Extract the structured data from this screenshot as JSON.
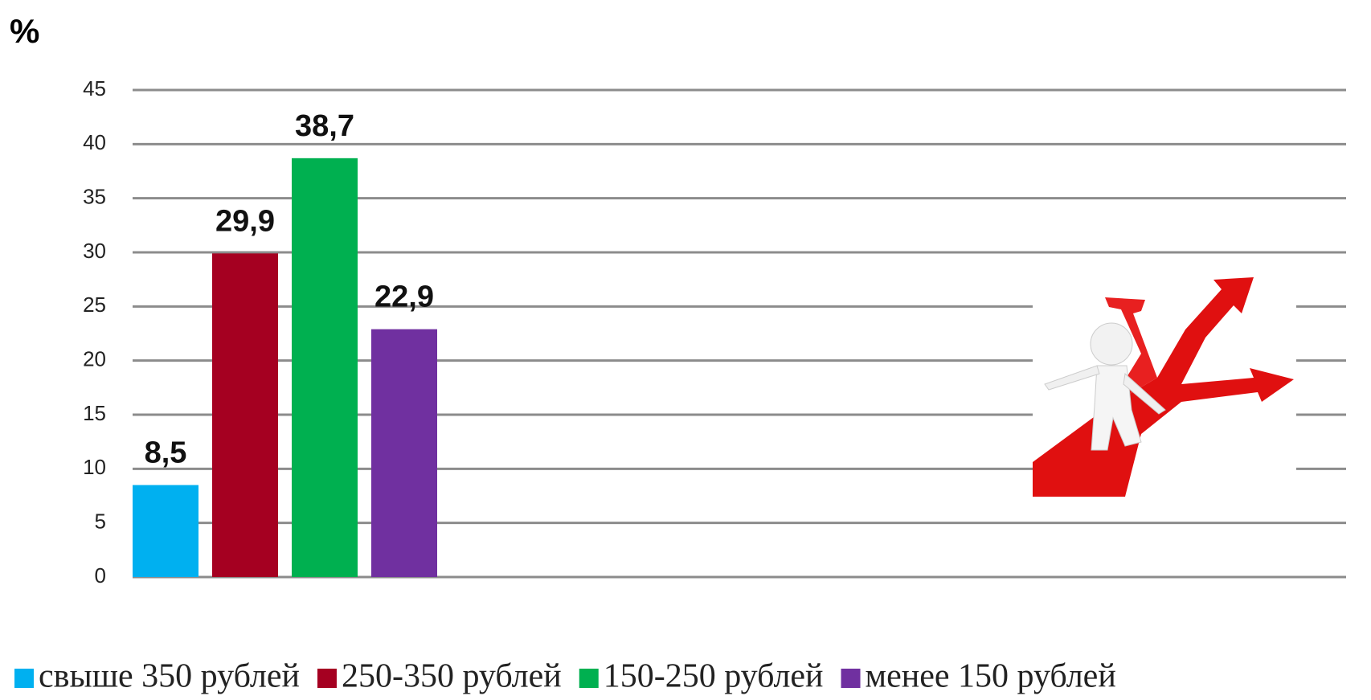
{
  "chart_data": {
    "type": "bar",
    "y_label": "%",
    "categories": [
      null
    ],
    "series": [
      {
        "name": "свыше 350 рублей",
        "color": "#00b0f0",
        "values": [
          8.5
        ],
        "value_labels": [
          "8,5"
        ]
      },
      {
        "name": "250-350 рублей",
        "color": "#a50021",
        "values": [
          29.9
        ],
        "value_labels": [
          "29,9"
        ]
      },
      {
        "name": "150-250 рублей",
        "color": "#00b050",
        "values": [
          38.7
        ],
        "value_labels": [
          "38,7"
        ]
      },
      {
        "name": "менее 150 рублей",
        "color": "#7030a0",
        "values": [
          22.9
        ],
        "value_labels": [
          "22,9"
        ]
      }
    ],
    "ylim": [
      0,
      45
    ],
    "yticks": [
      0,
      5,
      10,
      15,
      20,
      25,
      30,
      35,
      40,
      45
    ],
    "grid": true,
    "legend": "bottom"
  }
}
